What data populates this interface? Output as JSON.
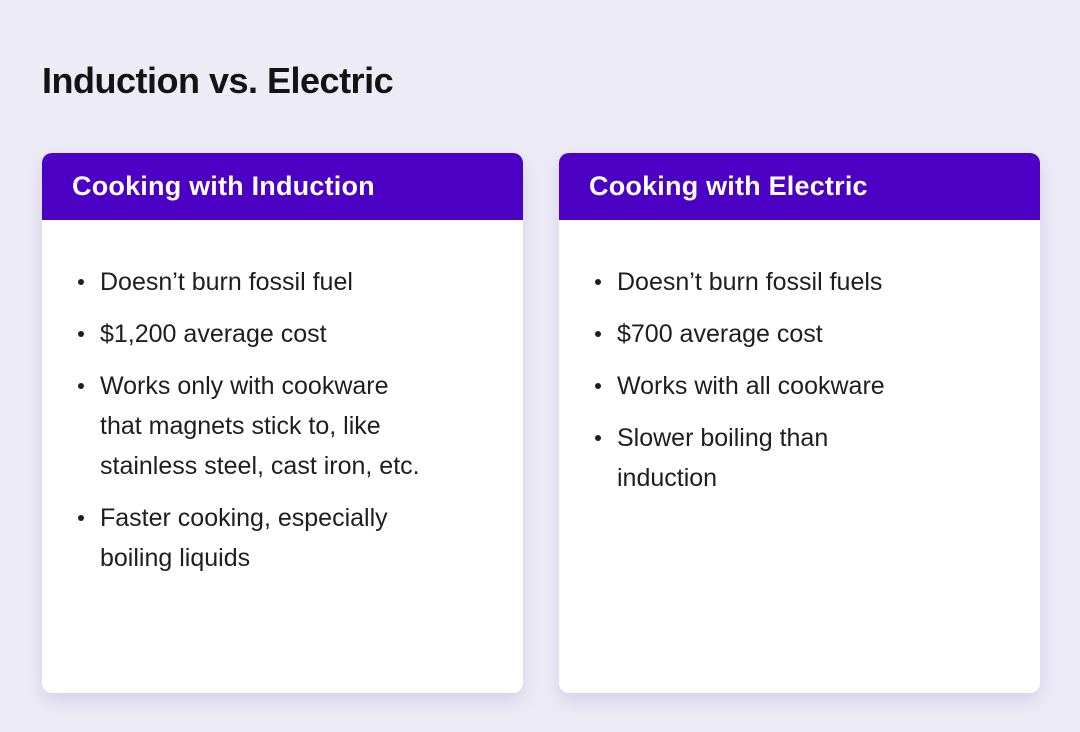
{
  "page": {
    "title": "Induction vs. Electric"
  },
  "colors": {
    "page_background": "#EDEBF6",
    "header_purple": "#4B00C4",
    "card_background": "#FFFFFF",
    "body_text": "#1E1E20",
    "header_text": "#FFFFFF"
  },
  "cards": [
    {
      "header": "Cooking with Induction",
      "bullets": [
        [
          "Doesn’t burn fossil fuel"
        ],
        [
          "$1,200 average cost"
        ],
        [
          "Works only with cookware",
          "that magnets stick to, like",
          "stainless steel, cast iron, etc."
        ],
        [
          "Faster cooking, especially",
          "boiling liquids"
        ]
      ]
    },
    {
      "header": "Cooking with Electric",
      "bullets": [
        [
          "Doesn’t burn fossil fuels"
        ],
        [
          "$700 average cost"
        ],
        [
          "Works with all cookware"
        ],
        [
          "Slower boiling than",
          "induction"
        ]
      ]
    }
  ]
}
